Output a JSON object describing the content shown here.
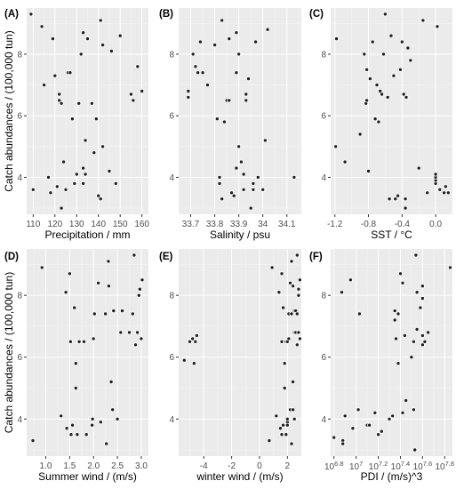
{
  "chart_data": [
    {
      "type": "scatter",
      "tag": "(A)",
      "xlabel": "Precipitation / mm",
      "ylabel": "Catch abundances / (100,000 tun)",
      "xlim": [
        107,
        163
      ],
      "ylim": [
        2.8,
        9.5
      ],
      "xticks": [
        110,
        120,
        130,
        140,
        150,
        160
      ],
      "yticks": [
        4,
        6,
        8
      ],
      "points": [
        [
          109,
          9.3
        ],
        [
          110,
          3.6
        ],
        [
          114,
          8.9
        ],
        [
          115,
          7.0
        ],
        [
          117,
          4.0
        ],
        [
          118,
          3.5
        ],
        [
          119,
          8.5
        ],
        [
          120,
          7.3
        ],
        [
          121,
          3.7
        ],
        [
          122,
          6.5
        ],
        [
          122,
          6.7
        ],
        [
          123,
          3.0
        ],
        [
          123,
          6.4
        ],
        [
          124,
          4.5
        ],
        [
          125,
          3.6
        ],
        [
          126,
          7.4
        ],
        [
          127,
          7.4
        ],
        [
          128,
          5.9
        ],
        [
          129,
          3.8
        ],
        [
          130,
          4.1
        ],
        [
          131,
          6.4
        ],
        [
          132,
          8.0
        ],
        [
          133,
          3.8
        ],
        [
          133,
          4.3
        ],
        [
          133,
          8.7
        ],
        [
          134,
          5.2
        ],
        [
          134,
          4.1
        ],
        [
          135,
          8.5
        ],
        [
          137,
          6.4
        ],
        [
          138,
          4.8
        ],
        [
          139,
          5.9
        ],
        [
          140,
          3.4
        ],
        [
          141,
          3.3
        ],
        [
          141,
          9.1
        ],
        [
          142,
          5.0
        ],
        [
          142,
          8.3
        ],
        [
          145,
          4.2
        ],
        [
          146,
          8.1
        ],
        [
          148,
          3.8
        ],
        [
          150,
          8.6
        ],
        [
          155,
          6.7
        ],
        [
          156,
          6.5
        ],
        [
          158,
          7.6
        ],
        [
          160,
          6.8
        ]
      ]
    },
    {
      "type": "scatter",
      "tag": "(B)",
      "xlabel": "Salinity / psu",
      "ylabel": "",
      "xlim": [
        33.65,
        34.16
      ],
      "ylim": [
        2.8,
        9.5
      ],
      "xticks": [
        33.7,
        33.8,
        33.9,
        34.0,
        34.1
      ],
      "yticks": [
        4,
        6,
        8
      ],
      "points": [
        [
          33.69,
          6.8
        ],
        [
          33.69,
          6.6
        ],
        [
          33.71,
          8.0
        ],
        [
          33.72,
          7.6
        ],
        [
          33.73,
          7.4
        ],
        [
          33.74,
          8.4
        ],
        [
          33.75,
          7.4
        ],
        [
          33.77,
          7.0
        ],
        [
          33.8,
          8.3
        ],
        [
          33.81,
          5.9
        ],
        [
          33.82,
          4.0
        ],
        [
          33.82,
          3.8
        ],
        [
          33.83,
          3.3
        ],
        [
          33.83,
          9.1
        ],
        [
          33.84,
          5.8
        ],
        [
          33.85,
          6.5
        ],
        [
          33.86,
          6.5
        ],
        [
          33.86,
          8.5
        ],
        [
          33.87,
          3.5
        ],
        [
          33.88,
          3.4
        ],
        [
          33.89,
          4.3
        ],
        [
          33.89,
          7.4
        ],
        [
          33.89,
          8.7
        ],
        [
          33.9,
          8.0
        ],
        [
          33.9,
          5.0
        ],
        [
          33.91,
          4.5
        ],
        [
          33.92,
          4.1
        ],
        [
          33.92,
          3.6
        ],
        [
          33.93,
          6.7
        ],
        [
          33.93,
          6.5
        ],
        [
          33.94,
          7.2
        ],
        [
          33.95,
          3.0
        ],
        [
          33.96,
          3.8
        ],
        [
          33.96,
          3.6
        ],
        [
          33.97,
          8.4
        ],
        [
          33.98,
          4.0
        ],
        [
          34.0,
          3.6
        ],
        [
          34.01,
          5.2
        ],
        [
          34.02,
          8.8
        ],
        [
          34.13,
          4.0
        ]
      ]
    },
    {
      "type": "scatter",
      "tag": "(C)",
      "xlabel": "SST / °C",
      "ylabel": "",
      "xlim": [
        -1.25,
        0.2
      ],
      "ylim": [
        2.8,
        9.5
      ],
      "xticks": [
        -1.2,
        -0.8,
        -0.4,
        0.0
      ],
      "xticklabels": [
        "-1.2",
        "-0.8",
        "-0.4",
        "0.0"
      ],
      "yticks": [
        4,
        6,
        8
      ],
      "points": [
        [
          -1.19,
          5.0
        ],
        [
          -1.18,
          8.5
        ],
        [
          -1.08,
          4.5
        ],
        [
          -0.9,
          5.4
        ],
        [
          -0.85,
          8.0
        ],
        [
          -0.83,
          6.4
        ],
        [
          -0.82,
          6.5
        ],
        [
          -0.82,
          7.5
        ],
        [
          -0.8,
          4.2
        ],
        [
          -0.78,
          7.2
        ],
        [
          -0.75,
          8.4
        ],
        [
          -0.72,
          5.9
        ],
        [
          -0.7,
          7.0
        ],
        [
          -0.68,
          5.8
        ],
        [
          -0.66,
          6.8
        ],
        [
          -0.64,
          6.7
        ],
        [
          -0.62,
          8.0
        ],
        [
          -0.6,
          9.3
        ],
        [
          -0.57,
          6.6
        ],
        [
          -0.55,
          3.3
        ],
        [
          -0.53,
          8.6
        ],
        [
          -0.5,
          7.3
        ],
        [
          -0.48,
          3.3
        ],
        [
          -0.45,
          3.4
        ],
        [
          -0.42,
          7.5
        ],
        [
          -0.4,
          8.4
        ],
        [
          -0.38,
          6.7
        ],
        [
          -0.36,
          3.3
        ],
        [
          -0.36,
          3.0
        ],
        [
          -0.35,
          6.6
        ],
        [
          -0.33,
          8.2
        ],
        [
          -0.3,
          7.8
        ],
        [
          -0.2,
          4.3
        ],
        [
          -0.15,
          9.1
        ],
        [
          -0.1,
          3.5
        ],
        [
          0.0,
          3.8
        ],
        [
          0.0,
          3.9
        ],
        [
          0.0,
          4.0
        ],
        [
          0.0,
          4.1
        ],
        [
          0.02,
          8.9
        ],
        [
          0.05,
          3.6
        ],
        [
          0.1,
          3.5
        ],
        [
          0.12,
          3.7
        ],
        [
          0.15,
          3.5
        ]
      ]
    },
    {
      "type": "scatter",
      "tag": "(D)",
      "xlabel": "Summer wind / (m/s)",
      "ylabel": "Catch abundances / (100,000 tun)",
      "xlim": [
        0.6,
        3.15
      ],
      "ylim": [
        2.8,
        9.5
      ],
      "xticks": [
        1.0,
        1.5,
        2.0,
        2.5,
        3.0
      ],
      "xticklabels": [
        "1.0",
        "1.5",
        "2.0",
        "2.5",
        "3.0"
      ],
      "yticks": [
        4,
        6,
        8
      ],
      "points": [
        [
          0.73,
          3.3
        ],
        [
          0.92,
          8.9
        ],
        [
          1.32,
          4.1
        ],
        [
          1.42,
          8.1
        ],
        [
          1.44,
          3.7
        ],
        [
          1.5,
          8.7
        ],
        [
          1.52,
          6.5
        ],
        [
          1.53,
          3.5
        ],
        [
          1.56,
          3.8
        ],
        [
          1.6,
          7.6
        ],
        [
          1.63,
          5.8
        ],
        [
          1.63,
          5.0
        ],
        [
          1.66,
          3.5
        ],
        [
          1.7,
          6.5
        ],
        [
          1.8,
          6.5
        ],
        [
          1.85,
          3.5
        ],
        [
          1.97,
          3.8
        ],
        [
          1.98,
          4.0
        ],
        [
          2.0,
          6.6
        ],
        [
          2.02,
          7.4
        ],
        [
          2.1,
          8.4
        ],
        [
          2.15,
          3.9
        ],
        [
          2.25,
          7.4
        ],
        [
          2.27,
          3.2
        ],
        [
          2.31,
          9.1
        ],
        [
          2.32,
          8.3
        ],
        [
          2.37,
          5.2
        ],
        [
          2.4,
          4.3
        ],
        [
          2.42,
          7.5
        ],
        [
          2.5,
          4.0
        ],
        [
          2.57,
          6.8
        ],
        [
          2.6,
          7.5
        ],
        [
          2.75,
          6.8
        ],
        [
          2.82,
          7.4
        ],
        [
          2.85,
          9.3
        ],
        [
          2.88,
          6.4
        ],
        [
          2.92,
          6.8
        ],
        [
          2.95,
          8.0
        ],
        [
          2.97,
          8.2
        ],
        [
          3.0,
          6.6
        ],
        [
          3.02,
          8.5
        ]
      ]
    },
    {
      "type": "scatter",
      "tag": "(E)",
      "xlabel": "winter wind / (m/s)",
      "ylabel": "",
      "xlim": [
        -5.8,
        3.0
      ],
      "ylim": [
        2.8,
        9.5
      ],
      "xticks": [
        -4,
        -2,
        0,
        2
      ],
      "yticks": [
        4,
        6,
        8
      ],
      "points": [
        [
          -5.4,
          5.9
        ],
        [
          -5.0,
          6.5
        ],
        [
          -4.8,
          6.6
        ],
        [
          -4.7,
          5.8
        ],
        [
          -4.6,
          6.5
        ],
        [
          -4.5,
          6.7
        ],
        [
          0.7,
          3.3
        ],
        [
          0.9,
          8.9
        ],
        [
          1.2,
          4.1
        ],
        [
          1.4,
          8.1
        ],
        [
          1.5,
          3.7
        ],
        [
          1.6,
          8.7
        ],
        [
          1.6,
          6.5
        ],
        [
          1.6,
          3.5
        ],
        [
          1.7,
          3.8
        ],
        [
          1.7,
          7.6
        ],
        [
          1.8,
          5.8
        ],
        [
          1.8,
          5.0
        ],
        [
          1.9,
          3.5
        ],
        [
          1.9,
          6.5
        ],
        [
          2.0,
          6.5
        ],
        [
          2.0,
          3.9
        ],
        [
          2.0,
          3.8
        ],
        [
          2.0,
          4.0
        ],
        [
          2.1,
          6.6
        ],
        [
          2.1,
          7.4
        ],
        [
          2.2,
          8.4
        ],
        [
          2.2,
          4.3
        ],
        [
          2.3,
          7.4
        ],
        [
          2.3,
          3.2
        ],
        [
          2.3,
          9.1
        ],
        [
          2.4,
          8.3
        ],
        [
          2.4,
          5.2
        ],
        [
          2.4,
          4.3
        ],
        [
          2.5,
          7.5
        ],
        [
          2.5,
          4.0
        ],
        [
          2.5,
          6.8
        ],
        [
          2.6,
          7.5
        ],
        [
          2.6,
          6.8
        ],
        [
          2.7,
          7.4
        ],
        [
          2.7,
          9.3
        ],
        [
          2.7,
          6.4
        ],
        [
          2.8,
          6.8
        ],
        [
          2.8,
          8.0
        ],
        [
          2.8,
          8.2
        ],
        [
          2.9,
          6.6
        ],
        [
          2.9,
          8.5
        ]
      ]
    },
    {
      "type": "scatter",
      "tag": "(F)",
      "xlabel": "PDI / (m/s)^3",
      "ylabel": "",
      "xscale": "log10",
      "xlim": [
        6.77,
        7.87
      ],
      "ylim": [
        2.8,
        9.5
      ],
      "xticks": [
        6.8,
        7.0,
        7.2,
        7.4,
        7.6,
        7.8
      ],
      "xticklabels_base": "10",
      "xticklabels_exp": [
        "6.8",
        "7",
        "7.2",
        "7.4",
        "7.6",
        "7.8"
      ],
      "yticks": [
        4,
        6,
        8
      ],
      "points": [
        [
          6.8,
          3.4
        ],
        [
          6.87,
          8.1
        ],
        [
          6.88,
          3.3
        ],
        [
          6.88,
          3.2
        ],
        [
          6.9,
          4.1
        ],
        [
          6.95,
          8.5
        ],
        [
          6.97,
          3.7
        ],
        [
          7.02,
          4.3
        ],
        [
          7.03,
          7.4
        ],
        [
          7.1,
          3.8
        ],
        [
          7.12,
          3.8
        ],
        [
          7.17,
          4.2
        ],
        [
          7.2,
          3.5
        ],
        [
          7.23,
          3.6
        ],
        [
          7.3,
          4.0
        ],
        [
          7.33,
          4.1
        ],
        [
          7.35,
          7.2
        ],
        [
          7.35,
          7.5
        ],
        [
          7.36,
          6.6
        ],
        [
          7.38,
          7.4
        ],
        [
          7.38,
          5.8
        ],
        [
          7.4,
          8.7
        ],
        [
          7.42,
          4.2
        ],
        [
          7.42,
          8.4
        ],
        [
          7.44,
          6.7
        ],
        [
          7.45,
          4.6
        ],
        [
          7.5,
          6.0
        ],
        [
          7.52,
          6.5
        ],
        [
          7.52,
          4.3
        ],
        [
          7.53,
          3.0
        ],
        [
          7.54,
          9.3
        ],
        [
          7.55,
          6.9
        ],
        [
          7.55,
          8.1
        ],
        [
          7.58,
          7.6
        ],
        [
          7.6,
          8.3
        ],
        [
          7.6,
          7.9
        ],
        [
          7.6,
          6.7
        ],
        [
          7.6,
          6.4
        ],
        [
          7.62,
          6.5
        ],
        [
          7.65,
          6.8
        ],
        [
          7.85,
          8.9
        ]
      ]
    }
  ]
}
